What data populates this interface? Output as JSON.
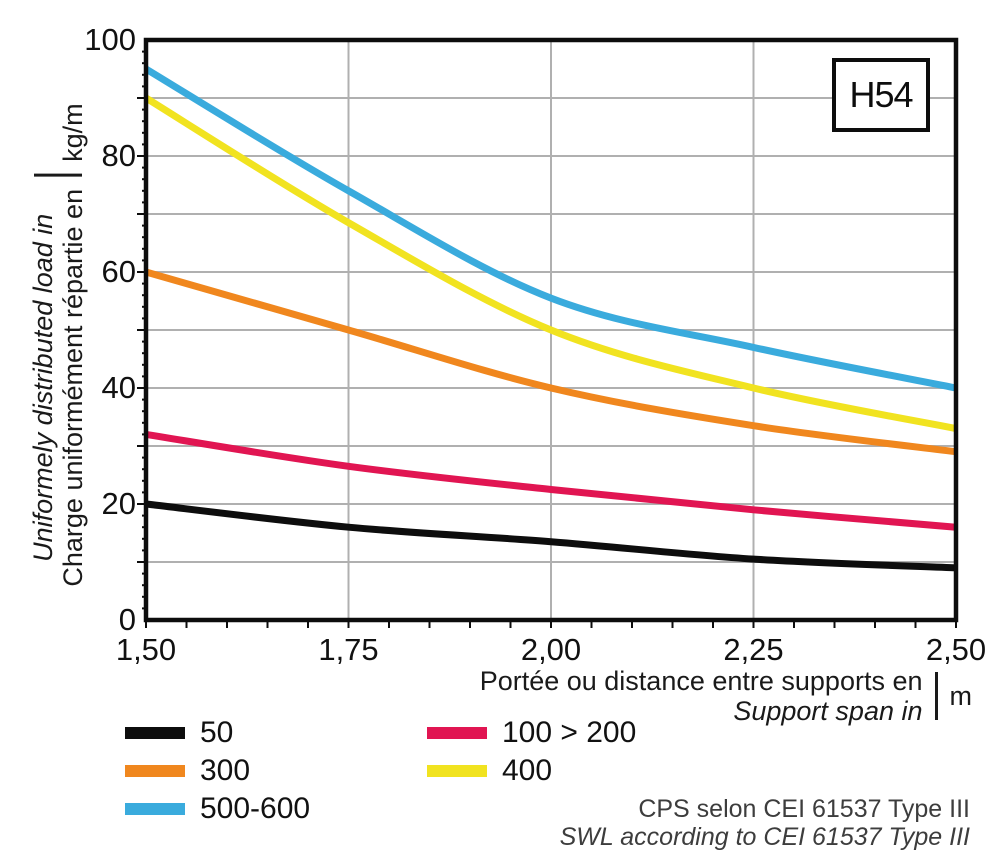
{
  "chart_data": {
    "type": "line",
    "title": "H54",
    "x": [
      1.5,
      1.75,
      2.0,
      2.25,
      2.5
    ],
    "xlim": [
      1.5,
      2.5
    ],
    "ylim": [
      0,
      100
    ],
    "grid": {
      "x_step": 0.25,
      "y_step": 10,
      "on": true
    },
    "x_ticks": [
      {
        "label": "1,50",
        "value": 1.5
      },
      {
        "label": "1,75",
        "value": 1.75
      },
      {
        "label": "2,00",
        "value": 2.0
      },
      {
        "label": "2,25",
        "value": 2.25
      },
      {
        "label": "2,50",
        "value": 2.5
      }
    ],
    "y_ticks": [
      {
        "label": "100",
        "value": 100
      },
      {
        "label": "80",
        "value": 80
      },
      {
        "label": "60",
        "value": 60
      },
      {
        "label": "40",
        "value": 40
      },
      {
        "label": "20",
        "value": 20
      },
      {
        "label": "0",
        "value": 0
      }
    ],
    "series": [
      {
        "name": "50",
        "color": "#0d0d0d",
        "values": [
          20,
          16,
          13.5,
          10.5,
          9
        ]
      },
      {
        "name": "100 > 200",
        "color": "#e11552",
        "values": [
          32,
          26.5,
          22.5,
          19,
          16
        ]
      },
      {
        "name": "300",
        "color": "#f0871e",
        "values": [
          60,
          50,
          40,
          33.5,
          29
        ]
      },
      {
        "name": "400",
        "color": "#f1e320",
        "values": [
          90,
          68.5,
          50,
          40,
          33
        ]
      },
      {
        "name": "500-600",
        "color": "#3aabdd",
        "values": [
          95,
          74,
          55.5,
          47,
          40
        ]
      }
    ],
    "ylabel_fr": "Charge uniformément répartie en",
    "ylabel_en": "Uniformely distributed load in",
    "y_unit": "kg/m",
    "xlabel_fr": "Portée ou distance entre supports en",
    "xlabel_en": "Support span in",
    "x_unit": "m",
    "colors": {
      "gridline": "#b0b0b0",
      "axis": "#0d0d0d"
    },
    "legend_position": "bottom"
  },
  "badge": {
    "label": "H54"
  },
  "legend": {
    "columns": [
      {
        "items": [
          {
            "label": "50",
            "color": "#0d0d0d"
          },
          {
            "label": "300",
            "color": "#f0871e"
          },
          {
            "label": "500-600",
            "color": "#3aabdd"
          }
        ]
      },
      {
        "items": [
          {
            "label": "100 > 200",
            "color": "#e11552"
          },
          {
            "label": "400",
            "color": "#f1e320"
          }
        ]
      }
    ]
  },
  "footer": {
    "line1": "CPS selon CEI 61537 Type III",
    "line2": "SWL according to CEI 61537 Type III"
  }
}
